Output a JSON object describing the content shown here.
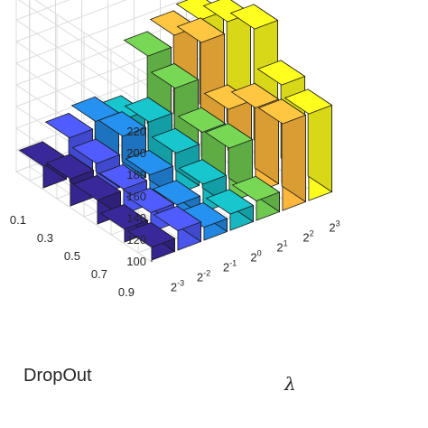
{
  "chart_data": {
    "type": "bar3d",
    "xlabel": "λ",
    "ylabel": "DropOut",
    "zlabel": "",
    "x_ticks": [
      {
        "base": "2",
        "exp": "-3"
      },
      {
        "base": "2",
        "exp": "-2"
      },
      {
        "base": "2",
        "exp": "-1"
      },
      {
        "base": "2",
        "exp": "0"
      },
      {
        "base": "2",
        "exp": "1"
      },
      {
        "base": "2",
        "exp": "2"
      },
      {
        "base": "2",
        "exp": "3"
      }
    ],
    "y_ticks": [
      "0.1",
      "0.3",
      "0.5",
      "0.7",
      "0.9"
    ],
    "z_ticks": [
      "100",
      "120",
      "140",
      "160",
      "180",
      "200",
      "220"
    ],
    "zlim": [
      100,
      220
    ],
    "grid": true,
    "values": [
      [
        120,
        137,
        143,
        135,
        185,
        195,
        200
      ],
      [
        125,
        130,
        146,
        150,
        172,
        205,
        215
      ],
      [
        122,
        123,
        127,
        138,
        148,
        160,
        225
      ],
      [
        112,
        118,
        116,
        126,
        150,
        178,
        190
      ],
      [
        112,
        118,
        112,
        115,
        118,
        180,
        180
      ]
    ],
    "column_colors": [
      "#35258f",
      "#4a55ee",
      "#2286de",
      "#16b7bf",
      "#6fc84f",
      "#fcb73c",
      "#fbfb1d"
    ]
  }
}
